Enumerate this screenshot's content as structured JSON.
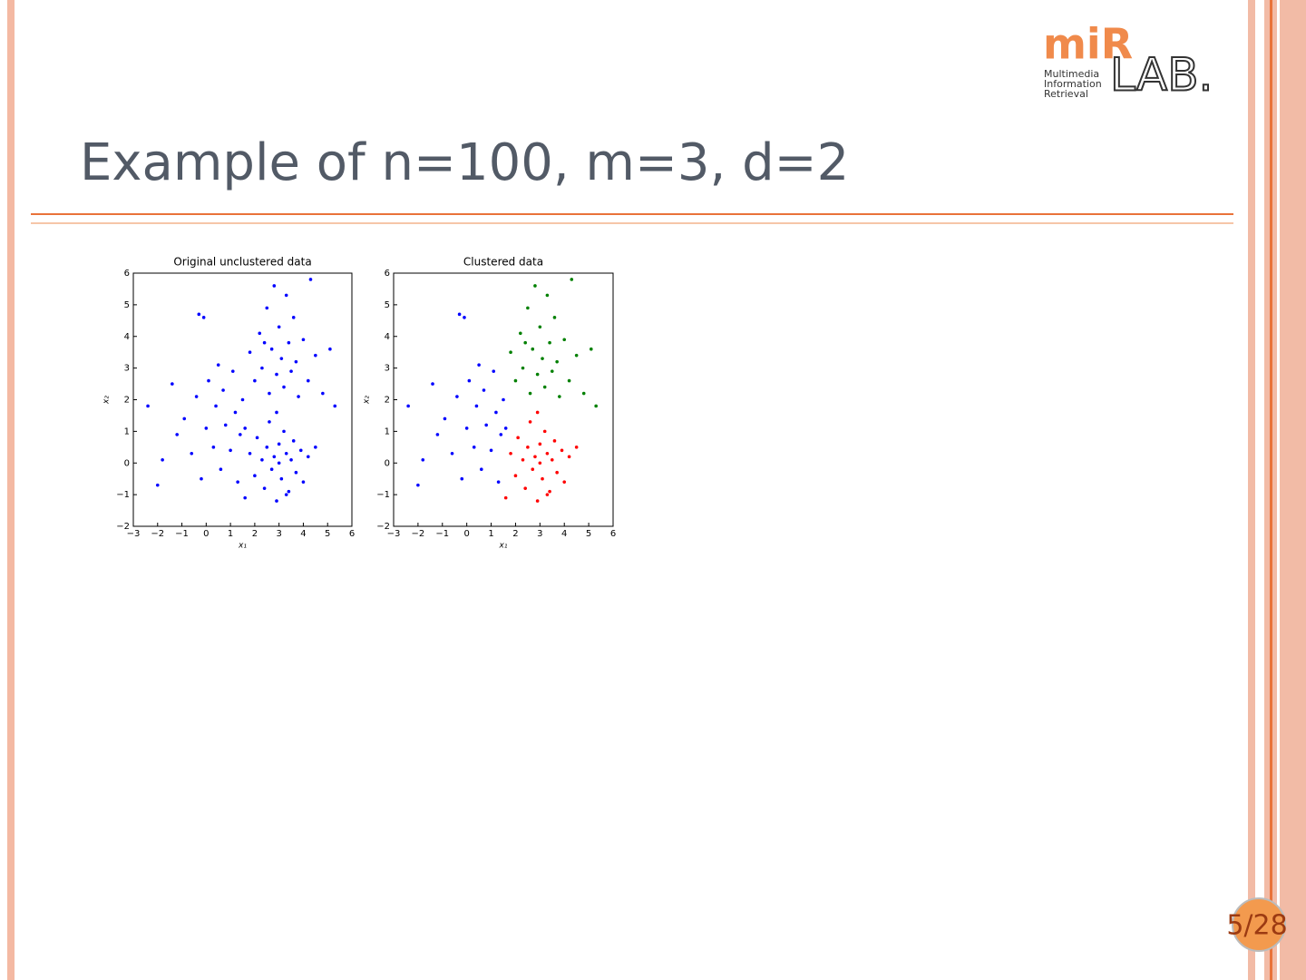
{
  "slide": {
    "title": "Example of n=100, m=3, d=2",
    "page_number": "5/28"
  },
  "logo": {
    "mark": "miR",
    "lab": "LAB.",
    "lines": [
      "Multimedia",
      "Information",
      "Retrieval"
    ]
  },
  "chart_data": [
    {
      "type": "scatter",
      "title": "Original unclustered data",
      "x_label": "x₁",
      "y_label": "x₂",
      "xlim": [
        -3,
        6
      ],
      "ylim": [
        -2,
        6
      ],
      "xticks": [
        {
          "value": -3,
          "label": "−3"
        },
        {
          "value": -2,
          "label": "−2"
        },
        {
          "value": -1,
          "label": "−1"
        },
        0,
        1,
        2,
        3,
        4,
        5,
        6
      ],
      "yticks": [
        {
          "value": -2,
          "label": "−2"
        },
        {
          "value": -1,
          "label": "−1"
        },
        0,
        1,
        2,
        3,
        4,
        5,
        6
      ],
      "series": [
        {
          "color": "#0000ff",
          "x": [
            -2.4,
            -1.8,
            -1.4,
            -1.2,
            -0.9,
            -0.6,
            -0.4,
            -0.2,
            0,
            0.1,
            0.3,
            0.4,
            0.6,
            0.7,
            0.8,
            1,
            1.1,
            1.2,
            1.3,
            1.4,
            1.5,
            -0.3,
            -0.1,
            0.5,
            -2.0,
            1.6
          ],
          "values": [
            1.8,
            0.1,
            2.5,
            0.9,
            1.4,
            0.3,
            2.1,
            -0.5,
            1.1,
            2.6,
            0.5,
            1.8,
            -0.2,
            2.3,
            1.2,
            0.4,
            2.9,
            1.6,
            -0.6,
            0.9,
            2.0,
            4.7,
            4.6,
            3.1,
            -0.7,
            1.1
          ]
        },
        {
          "color": "#0000ff",
          "x": [
            1.8,
            2.0,
            2.2,
            2.3,
            2.5,
            2.6,
            2.7,
            2.8,
            2.9,
            3.0,
            3.1,
            3.2,
            3.3,
            3.4,
            3.5,
            3.6,
            3.7,
            3.8,
            4.0,
            4.2,
            4.3,
            4.5,
            4.8,
            5.1,
            5.3,
            2.4
          ],
          "values": [
            3.5,
            2.6,
            4.1,
            3.0,
            4.9,
            2.2,
            3.6,
            5.6,
            2.8,
            4.3,
            3.3,
            2.4,
            5.3,
            3.8,
            2.9,
            4.6,
            3.2,
            2.1,
            3.9,
            2.6,
            5.8,
            3.4,
            2.2,
            3.6,
            1.8,
            3.8
          ]
        },
        {
          "color": "#0000ff",
          "x": [
            1.6,
            1.8,
            2.0,
            2.1,
            2.3,
            2.4,
            2.5,
            2.6,
            2.7,
            2.8,
            2.9,
            3.0,
            3.0,
            3.1,
            3.2,
            3.3,
            3.4,
            3.5,
            3.6,
            3.7,
            3.9,
            4.0,
            4.2,
            4.5,
            2.9,
            3.3
          ],
          "values": [
            -1.1,
            0.3,
            -0.4,
            0.8,
            0.1,
            -0.8,
            0.5,
            1.3,
            -0.2,
            0.2,
            -1.2,
            0.6,
            0.0,
            -0.5,
            1.0,
            0.3,
            -0.9,
            0.1,
            0.7,
            -0.3,
            0.4,
            -0.6,
            0.2,
            0.5,
            1.6,
            -1.0
          ]
        }
      ]
    },
    {
      "type": "scatter",
      "title": "Clustered data",
      "x_label": "x₁",
      "y_label": "x₂",
      "xlim": [
        -3,
        6
      ],
      "ylim": [
        -2,
        6
      ],
      "xticks": [
        {
          "value": -3,
          "label": "−3"
        },
        {
          "value": -2,
          "label": "−2"
        },
        {
          "value": -1,
          "label": "−1"
        },
        0,
        1,
        2,
        3,
        4,
        5,
        6
      ],
      "yticks": [
        {
          "value": -2,
          "label": "−2"
        },
        {
          "value": -1,
          "label": "−1"
        },
        0,
        1,
        2,
        3,
        4,
        5,
        6
      ],
      "series": [
        {
          "color": "#0000ff",
          "x": [
            -2.4,
            -1.8,
            -1.4,
            -1.2,
            -0.9,
            -0.6,
            -0.4,
            -0.2,
            0,
            0.1,
            0.3,
            0.4,
            0.6,
            0.7,
            0.8,
            1,
            1.1,
            1.2,
            1.3,
            1.4,
            1.5,
            -0.3,
            -0.1,
            0.5,
            -2.0,
            1.6
          ],
          "values": [
            1.8,
            0.1,
            2.5,
            0.9,
            1.4,
            0.3,
            2.1,
            -0.5,
            1.1,
            2.6,
            0.5,
            1.8,
            -0.2,
            2.3,
            1.2,
            0.4,
            2.9,
            1.6,
            -0.6,
            0.9,
            2.0,
            4.7,
            4.6,
            3.1,
            -0.7,
            1.1
          ]
        },
        {
          "color": "#008000",
          "x": [
            1.8,
            2.0,
            2.2,
            2.3,
            2.5,
            2.6,
            2.7,
            2.8,
            2.9,
            3.0,
            3.1,
            3.2,
            3.3,
            3.4,
            3.5,
            3.6,
            3.7,
            3.8,
            4.0,
            4.2,
            4.3,
            4.5,
            4.8,
            5.1,
            5.3,
            2.4
          ],
          "values": [
            3.5,
            2.6,
            4.1,
            3.0,
            4.9,
            2.2,
            3.6,
            5.6,
            2.8,
            4.3,
            3.3,
            2.4,
            5.3,
            3.8,
            2.9,
            4.6,
            3.2,
            2.1,
            3.9,
            2.6,
            5.8,
            3.4,
            2.2,
            3.6,
            1.8,
            3.8
          ]
        },
        {
          "color": "#ff0000",
          "x": [
            1.6,
            1.8,
            2.0,
            2.1,
            2.3,
            2.4,
            2.5,
            2.6,
            2.7,
            2.8,
            2.9,
            3.0,
            3.0,
            3.1,
            3.2,
            3.3,
            3.4,
            3.5,
            3.6,
            3.7,
            3.9,
            4.0,
            4.2,
            4.5,
            2.9,
            3.3
          ],
          "values": [
            -1.1,
            0.3,
            -0.4,
            0.8,
            0.1,
            -0.8,
            0.5,
            1.3,
            -0.2,
            0.2,
            -1.2,
            0.6,
            0.0,
            -0.5,
            1.0,
            0.3,
            -0.9,
            0.1,
            0.7,
            -0.3,
            0.4,
            -0.6,
            0.2,
            0.5,
            1.6,
            -1.0
          ]
        }
      ]
    }
  ]
}
